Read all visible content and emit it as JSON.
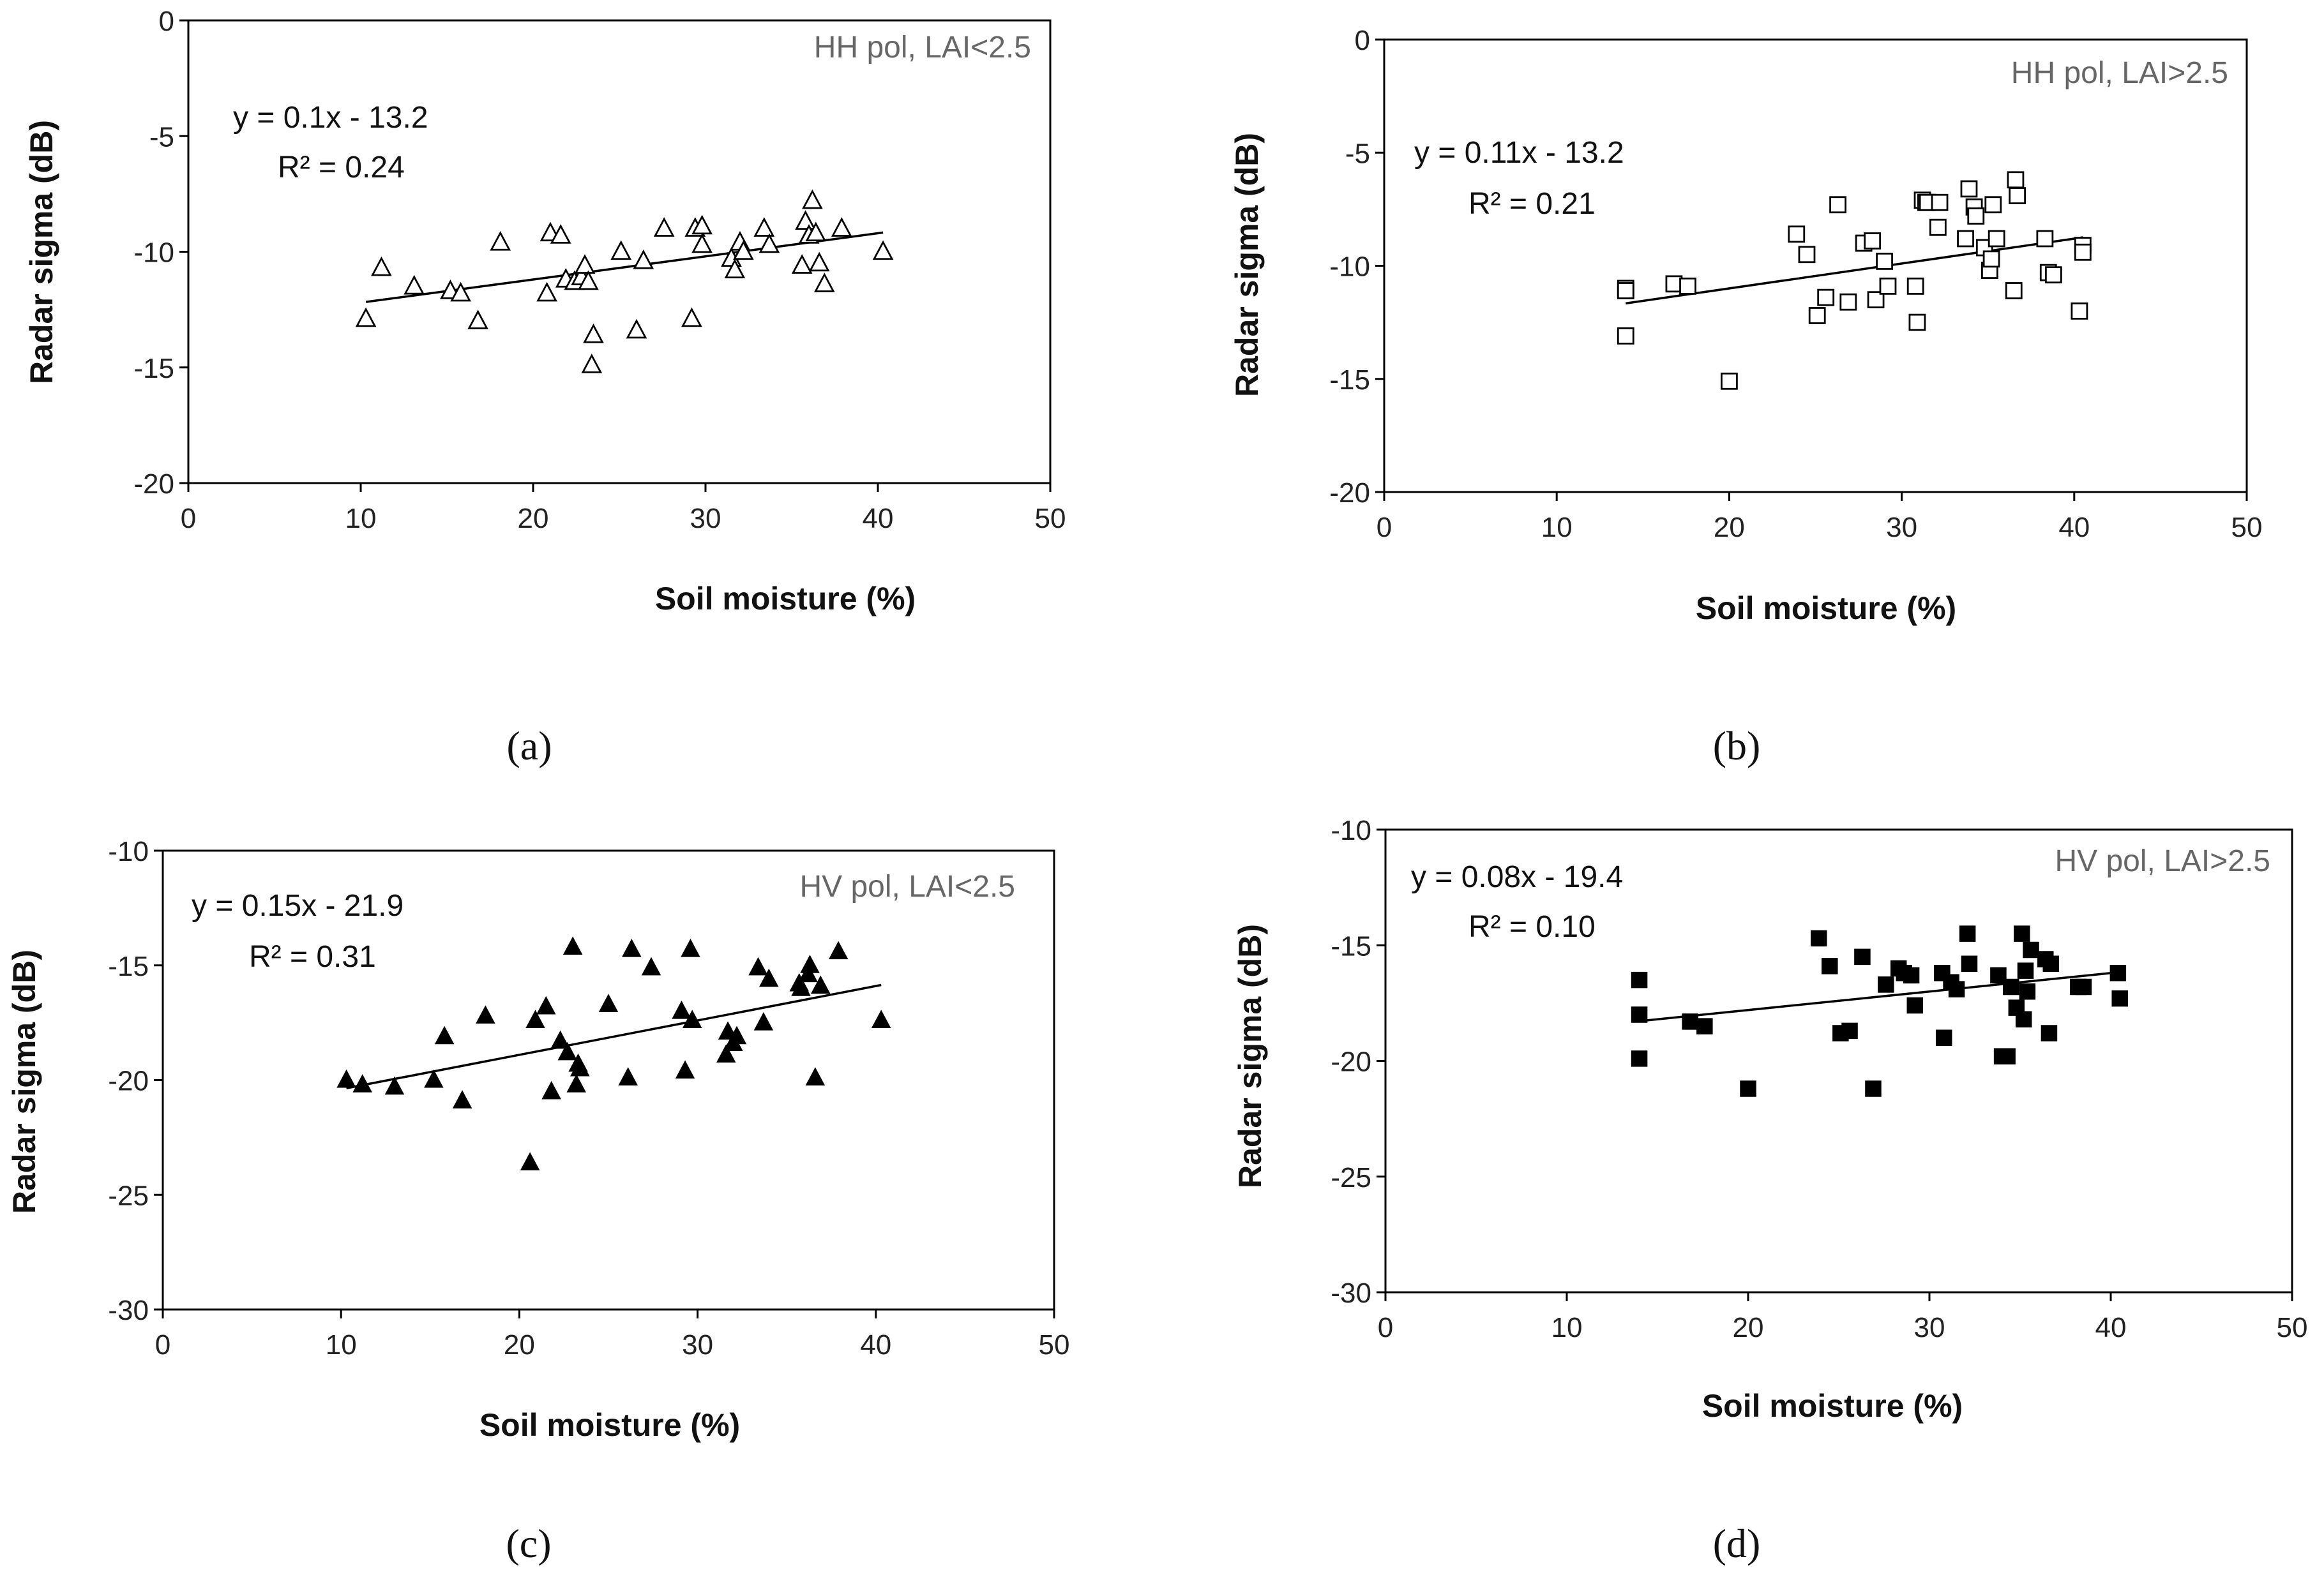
{
  "chart_data": [
    {
      "type": "scatter",
      "panel_label": "(a)",
      "inset_label": "HH pol, LAI<2.5",
      "equation": "y = 0.1x - 13.2",
      "r_squared": "R² = 0.24",
      "xlabel": "Soil moisture (%)",
      "ylabel": "Radar sigma (dB)",
      "xlim": [
        0,
        50
      ],
      "ylim": [
        -20,
        0
      ],
      "xticks": [
        "0",
        "10",
        "20",
        "30",
        "40",
        "50"
      ],
      "yticks": [
        "0",
        "-5",
        "-10",
        "-15",
        "-20"
      ],
      "marker": "open-triangle",
      "grid": false,
      "trendline": {
        "slope": 0.1,
        "intercept": -13.2,
        "x_range": [
          10.3,
          40.3
        ]
      },
      "series": [
        {
          "x": [
            10.3,
            11.2,
            13.1,
            15.2,
            15.8,
            16.8,
            18.1,
            20.8,
            21.0,
            21.6,
            21.9,
            22.4,
            22.8,
            23.0,
            23.2,
            23.5,
            23.4,
            25.1,
            26.0,
            26.4,
            27.6,
            29.2,
            29.4,
            29.8,
            29.8,
            31.5,
            31.7,
            32.0,
            32.2,
            33.4,
            33.7,
            35.6,
            35.8,
            36.0,
            36.2,
            36.4,
            36.6,
            36.9,
            37.9,
            40.3
          ],
          "y": [
            -12.9,
            -10.7,
            -11.5,
            -11.7,
            -11.8,
            -13.0,
            -9.6,
            -11.8,
            -9.2,
            -9.3,
            -11.2,
            -11.3,
            -11.1,
            -10.6,
            -11.3,
            -13.6,
            -14.9,
            -10.0,
            -13.4,
            -10.4,
            -9.0,
            -12.9,
            -9.0,
            -8.9,
            -9.7,
            -10.3,
            -10.8,
            -9.6,
            -10.0,
            -9.0,
            -9.7,
            -10.6,
            -8.7,
            -9.3,
            -7.8,
            -9.2,
            -10.5,
            -11.4,
            -9.0,
            -10.0
          ]
        }
      ]
    },
    {
      "type": "scatter",
      "panel_label": "(b)",
      "inset_label": "HH pol, LAI>2.5",
      "equation": "y = 0.11x - 13.2",
      "r_squared": "R² = 0.21",
      "xlabel": "Soil moisture (%)",
      "ylabel": "Radar sigma (dB)",
      "xlim": [
        0,
        50
      ],
      "ylim": [
        -20,
        0
      ],
      "xticks": [
        "0",
        "10",
        "20",
        "30",
        "40",
        "50"
      ],
      "yticks": [
        "0",
        "-5",
        "-10",
        "-15",
        "-20"
      ],
      "marker": "open-square",
      "grid": false,
      "trendline": {
        "slope": 0.11,
        "intercept": -13.2,
        "x_range": [
          14.0,
          40.5
        ]
      },
      "series": [
        {
          "x": [
            14.0,
            14.0,
            14.0,
            16.8,
            17.6,
            20.0,
            23.9,
            24.5,
            25.1,
            25.6,
            26.3,
            26.9,
            27.8,
            28.3,
            28.5,
            29.0,
            29.2,
            30.8,
            30.9,
            31.2,
            31.4,
            31.5,
            32.1,
            32.2,
            33.7,
            33.9,
            34.2,
            34.3,
            34.8,
            35.1,
            35.2,
            35.3,
            35.5,
            36.5,
            36.6,
            36.7,
            38.3,
            38.5,
            38.8,
            40.3,
            40.5,
            40.5
          ],
          "y": [
            -11.0,
            -11.1,
            -13.1,
            -10.8,
            -10.9,
            -15.1,
            -8.6,
            -9.5,
            -12.2,
            -11.4,
            -7.3,
            -11.6,
            -9.0,
            -8.9,
            -11.5,
            -9.8,
            -10.9,
            -10.9,
            -12.5,
            -7.1,
            -7.2,
            -7.2,
            -8.3,
            -7.2,
            -8.8,
            -6.6,
            -7.4,
            -7.8,
            -9.2,
            -10.2,
            -9.7,
            -7.3,
            -8.8,
            -11.1,
            -6.2,
            -6.9,
            -8.8,
            -10.3,
            -10.4,
            -12.0,
            -9.1,
            -9.4
          ]
        }
      ]
    },
    {
      "type": "scatter",
      "panel_label": "(c)",
      "inset_label": "HV pol, LAI<2.5",
      "equation": "y = 0.15x - 21.9",
      "r_squared": "R² = 0.31",
      "xlabel": "Soil moisture (%)",
      "ylabel": "Radar sigma (dB)",
      "xlim": [
        0,
        50
      ],
      "ylim": [
        -30,
        -10
      ],
      "xticks": [
        "0",
        "10",
        "20",
        "30",
        "40",
        "50"
      ],
      "yticks": [
        "-10",
        "-15",
        "-20",
        "-25",
        "-30"
      ],
      "marker": "filled-triangle",
      "grid": false,
      "trendline": {
        "slope": 0.15,
        "intercept": -21.9,
        "x_range": [
          10.3,
          40.3
        ]
      },
      "series": [
        {
          "x": [
            10.3,
            11.2,
            13.0,
            15.2,
            15.8,
            16.8,
            18.1,
            20.6,
            20.9,
            21.5,
            21.8,
            22.3,
            22.7,
            23.0,
            23.2,
            23.4,
            23.3,
            25.0,
            26.1,
            26.3,
            27.4,
            29.1,
            29.3,
            29.6,
            29.7,
            31.6,
            31.7,
            32.0,
            32.2,
            33.4,
            33.7,
            34.0,
            35.7,
            35.8,
            36.2,
            36.3,
            36.6,
            36.9,
            37.9,
            40.3
          ],
          "y": [
            -20.0,
            -20.2,
            -20.3,
            -20.0,
            -18.1,
            -20.9,
            -17.2,
            -23.6,
            -17.4,
            -16.8,
            -20.5,
            -18.3,
            -18.8,
            -14.2,
            -20.2,
            -19.5,
            -19.3,
            -16.7,
            -19.9,
            -14.3,
            -15.1,
            -17.0,
            -19.6,
            -14.3,
            -17.4,
            -18.9,
            -17.9,
            -18.4,
            -18.1,
            -15.1,
            -17.5,
            -15.6,
            -15.8,
            -16.0,
            -15.4,
            -15.0,
            -19.9,
            -15.9,
            -14.4,
            -17.4
          ]
        }
      ]
    },
    {
      "type": "scatter",
      "panel_label": "(d)",
      "inset_label": "HV pol, LAI>2.5",
      "equation": "y = 0.08x - 19.4",
      "r_squared": "R² = 0.10",
      "xlabel": "Soil moisture (%)",
      "ylabel": "Radar sigma (dB)",
      "xlim": [
        0,
        50
      ],
      "ylim": [
        -30,
        -10
      ],
      "xticks": [
        "0",
        "10",
        "20",
        "30",
        "40",
        "50"
      ],
      "yticks": [
        "-10",
        "-15",
        "-20",
        "-25",
        "-30"
      ],
      "marker": "filled-square",
      "grid": false,
      "trendline": {
        "slope": 0.08,
        "intercept": -19.4,
        "x_range": [
          14.0,
          40.5
        ]
      },
      "series": [
        {
          "x": [
            14.0,
            14.0,
            14.0,
            16.8,
            17.6,
            20.0,
            23.9,
            24.5,
            25.1,
            25.6,
            26.3,
            26.9,
            27.6,
            28.3,
            28.6,
            29.0,
            29.2,
            30.7,
            30.8,
            31.2,
            31.5,
            32.1,
            32.2,
            33.8,
            34.0,
            34.3,
            34.5,
            34.8,
            35.1,
            35.2,
            35.3,
            35.4,
            35.6,
            36.4,
            36.6,
            36.7,
            38.2,
            38.5,
            40.4,
            40.5
          ],
          "y": [
            -16.5,
            -18.0,
            -19.9,
            -18.3,
            -18.5,
            -21.2,
            -14.7,
            -15.9,
            -18.8,
            -18.7,
            -15.5,
            -21.2,
            -16.7,
            -16.0,
            -16.2,
            -16.3,
            -17.6,
            -16.2,
            -19.0,
            -16.6,
            -16.9,
            -14.5,
            -15.8,
            -16.3,
            -19.8,
            -19.8,
            -16.8,
            -17.7,
            -14.5,
            -18.2,
            -16.1,
            -17.0,
            -15.2,
            -15.6,
            -18.8,
            -15.8,
            -16.8,
            -16.8,
            -16.2,
            -17.3
          ]
        }
      ]
    }
  ]
}
